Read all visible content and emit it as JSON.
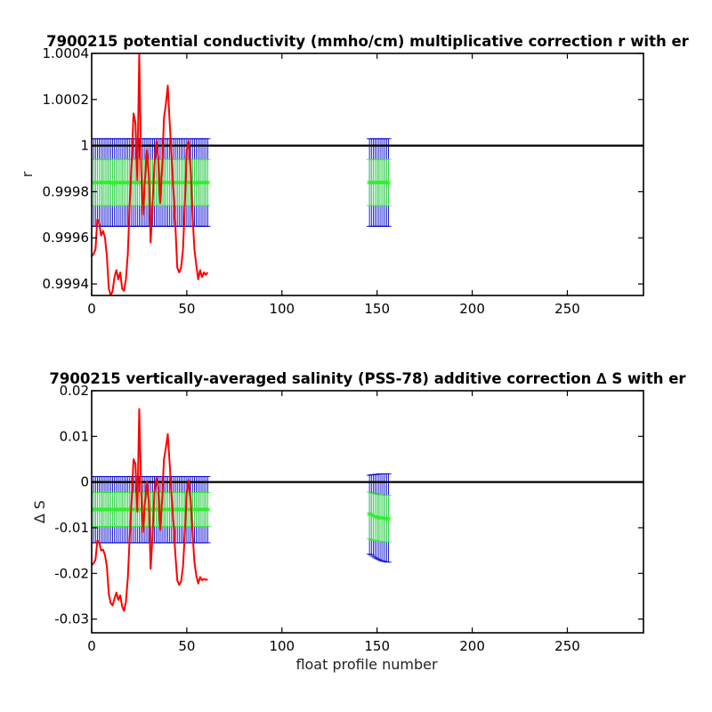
{
  "chart_data": [
    {
      "type": "line",
      "title": "7900215 potential conductivity (mmho/cm) multiplicative correction r with er",
      "xlabel": "",
      "ylabel": "r",
      "xlim": [
        0,
        290
      ],
      "ylim": [
        0.99935,
        1.0004
      ],
      "xticks": [
        0,
        50,
        100,
        150,
        200,
        250
      ],
      "yticks": [
        {
          "v": 0.9994,
          "label": "0.9994"
        },
        {
          "v": 0.9996,
          "label": "0.9996"
        },
        {
          "v": 0.9998,
          "label": "0.9998"
        },
        {
          "v": 1.0,
          "label": "1"
        },
        {
          "v": 1.0002,
          "label": "1.0002"
        },
        {
          "v": 1.0004,
          "label": "1.0004"
        }
      ],
      "grid": false,
      "reference_line": 1.0,
      "colors": {
        "profile": "#ff0000",
        "error_2sigma": "#0000cc",
        "error_1sigma": "#33ee33",
        "reference": "#000000"
      },
      "series": [
        {
          "role": "profile correction",
          "color": "#ff0000",
          "points": [
            [
              0,
              0.99952
            ],
            [
              1,
              0.99953
            ],
            [
              2,
              0.99955
            ],
            [
              3,
              0.99968
            ],
            [
              4,
              0.99966
            ],
            [
              5,
              0.99961
            ],
            [
              6,
              0.99963
            ],
            [
              7,
              0.9996
            ],
            [
              8,
              0.99952
            ],
            [
              9,
              0.99938
            ],
            [
              10,
              0.99935
            ],
            [
              11,
              0.99937
            ],
            [
              12,
              0.99943
            ],
            [
              13,
              0.99946
            ],
            [
              14,
              0.99942
            ],
            [
              15,
              0.99945
            ],
            [
              16,
              0.99938
            ],
            [
              17,
              0.99937
            ],
            [
              18,
              0.99942
            ],
            [
              19,
              0.99953
            ],
            [
              20,
              0.99975
            ],
            [
              21,
              0.99992
            ],
            [
              22,
              1.00014
            ],
            [
              23,
              1.0001
            ],
            [
              24,
              0.99985
            ],
            [
              25,
              1.0004
            ],
            [
              26,
              0.9999
            ],
            [
              27,
              0.9997
            ],
            [
              28,
              0.99985
            ],
            [
              29,
              0.99998
            ],
            [
              30,
              0.99988
            ],
            [
              31,
              0.99958
            ],
            [
              32,
              0.99975
            ],
            [
              33,
              0.99992
            ],
            [
              34,
              1.00002
            ],
            [
              35,
              0.99995
            ],
            [
              36,
              0.99975
            ],
            [
              37,
              0.9999
            ],
            [
              38,
              1.00012
            ],
            [
              39,
              1.00018
            ],
            [
              40,
              1.00026
            ],
            [
              41,
              1.0001
            ],
            [
              42,
              0.99995
            ],
            [
              43,
              0.9998
            ],
            [
              44,
              0.99965
            ],
            [
              45,
              0.99947
            ],
            [
              46,
              0.99945
            ],
            [
              47,
              0.99947
            ],
            [
              48,
              0.99955
            ],
            [
              49,
              0.99975
            ],
            [
              50,
              0.99998
            ],
            [
              51,
              1.00002
            ],
            [
              52,
              0.9999
            ],
            [
              53,
              0.9997
            ],
            [
              54,
              0.99955
            ],
            [
              55,
              0.99948
            ],
            [
              56,
              0.99942
            ],
            [
              57,
              0.99946
            ],
            [
              58,
              0.99943
            ],
            [
              59,
              0.99945
            ],
            [
              60,
              0.99944
            ],
            [
              61,
              0.99945
            ]
          ]
        }
      ],
      "error_bars": {
        "profiles": [
          0,
          1,
          2,
          3,
          4,
          5,
          6,
          7,
          8,
          9,
          10,
          11,
          12,
          13,
          14,
          15,
          16,
          17,
          18,
          19,
          20,
          21,
          22,
          23,
          24,
          25,
          26,
          27,
          28,
          29,
          30,
          31,
          32,
          33,
          34,
          35,
          36,
          37,
          38,
          39,
          40,
          41,
          42,
          43,
          44,
          45,
          46,
          47,
          48,
          49,
          50,
          51,
          52,
          53,
          54,
          55,
          56,
          57,
          58,
          59,
          60,
          61,
          146,
          147,
          148,
          149,
          150,
          151,
          152,
          153,
          154,
          155,
          156
        ],
        "center": 0.99984,
        "two_sigma": [
          0.99965,
          1.00003
        ],
        "one_sigma": [
          0.99974,
          0.99994
        ]
      }
    },
    {
      "type": "line",
      "title": "7900215 vertically-averaged salinity (PSS-78) additive correction ∆ S with er",
      "xlabel": "float profile number",
      "ylabel": "∆ S",
      "xlim": [
        0,
        290
      ],
      "ylim": [
        -0.033,
        0.02
      ],
      "xticks": [
        0,
        50,
        100,
        150,
        200,
        250
      ],
      "yticks": [
        {
          "v": -0.03,
          "label": "-0.03"
        },
        {
          "v": -0.02,
          "label": "-0.02"
        },
        {
          "v": -0.01,
          "label": "-0.01"
        },
        {
          "v": 0.0,
          "label": "0"
        },
        {
          "v": 0.01,
          "label": "0.01"
        },
        {
          "v": 0.02,
          "label": "0.02"
        }
      ],
      "grid": false,
      "reference_line": 0.0,
      "colors": {
        "profile": "#ff0000",
        "error_2sigma": "#0000cc",
        "error_1sigma": "#33ee33",
        "reference": "#000000"
      },
      "series": [
        {
          "role": "profile correction",
          "color": "#ff0000",
          "points": [
            [
              0,
              -0.0182
            ],
            [
              1,
              -0.0178
            ],
            [
              2,
              -0.017
            ],
            [
              3,
              -0.0128
            ],
            [
              4,
              -0.0133
            ],
            [
              5,
              -0.015
            ],
            [
              6,
              -0.0148
            ],
            [
              7,
              -0.016
            ],
            [
              8,
              -0.0185
            ],
            [
              9,
              -0.0245
            ],
            [
              10,
              -0.0265
            ],
            [
              11,
              -0.027
            ],
            [
              12,
              -0.0255
            ],
            [
              13,
              -0.0242
            ],
            [
              14,
              -0.0258
            ],
            [
              15,
              -0.0248
            ],
            [
              16,
              -0.0272
            ],
            [
              17,
              -0.0282
            ],
            [
              18,
              -0.0262
            ],
            [
              19,
              -0.021
            ],
            [
              20,
              -0.012
            ],
            [
              21,
              -0.004
            ],
            [
              22,
              0.005
            ],
            [
              23,
              0.004
            ],
            [
              24,
              -0.0065
            ],
            [
              25,
              0.016
            ],
            [
              26,
              -0.002
            ],
            [
              27,
              -0.011
            ],
            [
              28,
              -0.0045
            ],
            [
              29,
              0.0
            ],
            [
              30,
              -0.004
            ],
            [
              31,
              -0.019
            ],
            [
              32,
              -0.0115
            ],
            [
              33,
              -0.002
            ],
            [
              34,
              0.001
            ],
            [
              35,
              -0.001
            ],
            [
              36,
              -0.0105
            ],
            [
              37,
              -0.004
            ],
            [
              38,
              0.005
            ],
            [
              39,
              0.0075
            ],
            [
              40,
              0.0105
            ],
            [
              41,
              0.004
            ],
            [
              42,
              -0.003
            ],
            [
              43,
              -0.009
            ],
            [
              44,
              -0.016
            ],
            [
              45,
              -0.0215
            ],
            [
              46,
              -0.0225
            ],
            [
              47,
              -0.0218
            ],
            [
              48,
              -0.0185
            ],
            [
              49,
              -0.011
            ],
            [
              50,
              -0.002
            ],
            [
              51,
              0.0005
            ],
            [
              52,
              -0.004
            ],
            [
              53,
              -0.011
            ],
            [
              54,
              -0.0175
            ],
            [
              55,
              -0.0205
            ],
            [
              56,
              -0.0222
            ],
            [
              57,
              -0.0208
            ],
            [
              58,
              -0.0215
            ],
            [
              59,
              -0.0212
            ],
            [
              60,
              -0.0214
            ],
            [
              61,
              -0.0213
            ]
          ]
        }
      ],
      "error_bars": {
        "left_profiles": [
          0,
          1,
          2,
          3,
          4,
          5,
          6,
          7,
          8,
          9,
          10,
          11,
          12,
          13,
          14,
          15,
          16,
          17,
          18,
          19,
          20,
          21,
          22,
          23,
          24,
          25,
          26,
          27,
          28,
          29,
          30,
          31,
          32,
          33,
          34,
          35,
          36,
          37,
          38,
          39,
          40,
          41,
          42,
          43,
          44,
          45,
          46,
          47,
          48,
          49,
          50,
          51,
          52,
          53,
          54,
          55,
          56,
          57,
          58,
          59,
          60,
          61
        ],
        "left": {
          "center": -0.006,
          "two_sigma": [
            -0.0133,
            0.0012
          ],
          "one_sigma": [
            -0.0097,
            -0.0023
          ]
        },
        "right_profiles": [
          146,
          147,
          148,
          149,
          150,
          151,
          152,
          153,
          154,
          155,
          156
        ],
        "right": [
          {
            "center": -0.007,
            "two_sigma": [
              -0.0158,
              0.0015
            ],
            "one_sigma": [
              -0.0124,
              -0.0022
            ]
          },
          {
            "center": -0.0072,
            "two_sigma": [
              -0.016,
              0.0016
            ],
            "one_sigma": [
              -0.0126,
              -0.0024
            ]
          },
          {
            "center": -0.0074,
            "two_sigma": [
              -0.0163,
              0.0016
            ],
            "one_sigma": [
              -0.0127,
              -0.0025
            ]
          },
          {
            "center": -0.0076,
            "two_sigma": [
              -0.0166,
              0.0017
            ],
            "one_sigma": [
              -0.0128,
              -0.0026
            ]
          },
          {
            "center": -0.0077,
            "two_sigma": [
              -0.0168,
              0.0017
            ],
            "one_sigma": [
              -0.0129,
              -0.0027
            ]
          },
          {
            "center": -0.0078,
            "two_sigma": [
              -0.017,
              0.0018
            ],
            "one_sigma": [
              -0.013,
              -0.0028
            ]
          },
          {
            "center": -0.0078,
            "two_sigma": [
              -0.0172,
              0.0018
            ],
            "one_sigma": [
              -0.013,
              -0.0028
            ]
          },
          {
            "center": -0.0079,
            "two_sigma": [
              -0.0173,
              0.0018
            ],
            "one_sigma": [
              -0.0131,
              -0.0028
            ]
          },
          {
            "center": -0.008,
            "two_sigma": [
              -0.0174,
              0.0018
            ],
            "one_sigma": [
              -0.0131,
              -0.0029
            ]
          },
          {
            "center": -0.008,
            "two_sigma": [
              -0.0175,
              0.0018
            ],
            "one_sigma": [
              -0.0131,
              -0.0029
            ]
          },
          {
            "center": -0.008,
            "two_sigma": [
              -0.0175,
              0.0018
            ],
            "one_sigma": [
              -0.0131,
              -0.0029
            ]
          }
        ]
      }
    }
  ]
}
